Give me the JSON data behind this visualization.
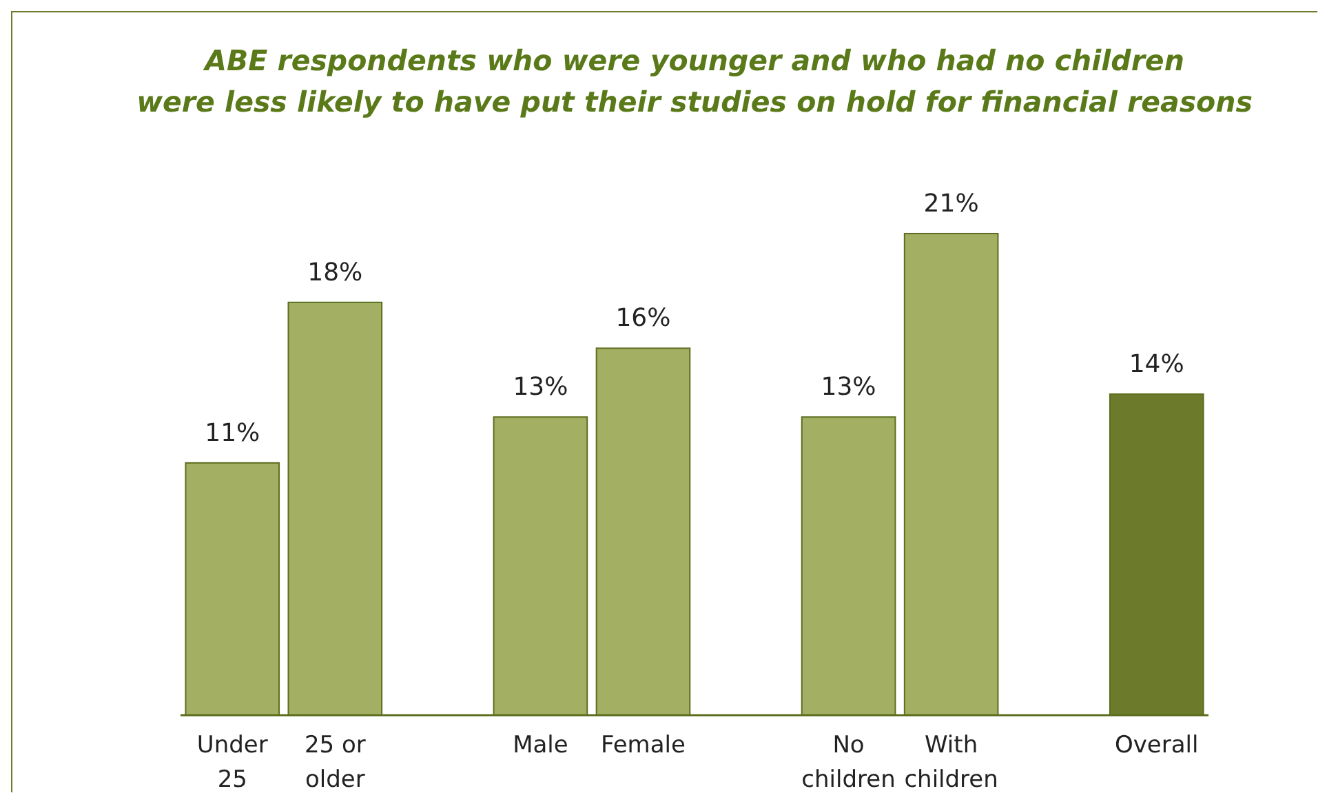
{
  "chart_data": {
    "type": "bar",
    "title": "ABE respondents who were younger and who had no children\nwere less likely to have put their studies on hold for financial reasons",
    "categories": [
      "Under 25",
      "25 or older",
      null,
      "Male",
      "Female",
      null,
      "No children",
      "With children",
      null,
      "Overall"
    ],
    "values": [
      11,
      18,
      null,
      13,
      16,
      null,
      13,
      21,
      null,
      14
    ],
    "colors": [
      "#a3b063",
      "#a3b063",
      null,
      "#a3b063",
      "#a3b063",
      null,
      "#a3b063",
      "#a3b063",
      null,
      "#6b7b2b"
    ],
    "value_labels": [
      "11%",
      "18%",
      null,
      "13%",
      "16%",
      null,
      "13%",
      "21%",
      null,
      "14%"
    ]
  }
}
